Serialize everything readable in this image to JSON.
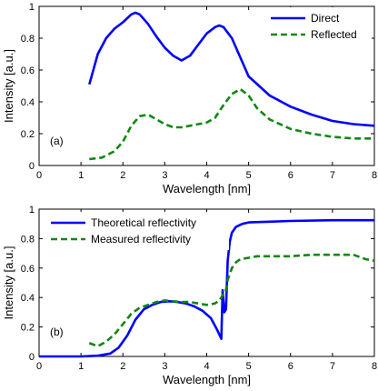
{
  "chart_data": [
    {
      "type": "line",
      "panel_label": "(a)",
      "xlabel": "Wavelength [nm]",
      "ylabel": "Intensity [a.u.]",
      "xlim": [
        0,
        8
      ],
      "ylim": [
        0,
        1
      ],
      "xticks": [
        "0",
        "1",
        "2",
        "3",
        "4",
        "5",
        "6",
        "7",
        "8"
      ],
      "yticks": [
        "0",
        "0.2",
        "0.4",
        "0.6",
        "0.8",
        "1"
      ],
      "grid": false,
      "legend_position": "top-right",
      "series": [
        {
          "name": "Direct",
          "color": "#0000ff",
          "dash": "solid",
          "x": [
            1.2,
            1.4,
            1.6,
            1.8,
            2.0,
            2.2,
            2.3,
            2.4,
            2.6,
            2.8,
            3.0,
            3.2,
            3.4,
            3.6,
            3.8,
            4.0,
            4.2,
            4.3,
            4.4,
            4.6,
            4.8,
            5.0,
            5.5,
            6.0,
            6.5,
            7.0,
            7.5,
            8.0
          ],
          "y": [
            0.51,
            0.7,
            0.8,
            0.86,
            0.9,
            0.95,
            0.96,
            0.95,
            0.89,
            0.81,
            0.74,
            0.69,
            0.66,
            0.69,
            0.76,
            0.83,
            0.87,
            0.88,
            0.87,
            0.8,
            0.68,
            0.56,
            0.44,
            0.37,
            0.32,
            0.28,
            0.26,
            0.25
          ]
        },
        {
          "name": "Reflected",
          "color": "#118811",
          "dash": "dashed",
          "x": [
            1.2,
            1.5,
            1.8,
            2.0,
            2.2,
            2.4,
            2.6,
            2.8,
            3.0,
            3.2,
            3.4,
            3.6,
            3.8,
            4.0,
            4.2,
            4.4,
            4.6,
            4.8,
            5.0,
            5.2,
            5.5,
            6.0,
            6.5,
            7.0,
            7.5,
            8.0
          ],
          "y": [
            0.04,
            0.05,
            0.09,
            0.15,
            0.25,
            0.31,
            0.32,
            0.29,
            0.26,
            0.24,
            0.24,
            0.25,
            0.26,
            0.27,
            0.3,
            0.38,
            0.45,
            0.48,
            0.44,
            0.36,
            0.29,
            0.23,
            0.2,
            0.18,
            0.17,
            0.17
          ]
        }
      ]
    },
    {
      "type": "line",
      "panel_label": "(b)",
      "xlabel": "Wavelength [nm]",
      "ylabel": "Intensity [a.u.]",
      "xlim": [
        0,
        8
      ],
      "ylim": [
        0,
        1
      ],
      "xticks": [
        "0",
        "1",
        "2",
        "3",
        "4",
        "5",
        "6",
        "7",
        "8"
      ],
      "yticks": [
        "0",
        "0.2",
        "0.4",
        "0.6",
        "0.8",
        "1"
      ],
      "grid": false,
      "legend_position": "top-left",
      "series": [
        {
          "name": "Theoretical reflectivity",
          "color": "#0000ff",
          "dash": "solid",
          "x": [
            0.0,
            1.0,
            1.4,
            1.7,
            1.9,
            2.1,
            2.3,
            2.5,
            2.7,
            2.9,
            3.1,
            3.3,
            3.5,
            3.7,
            3.9,
            4.1,
            4.25,
            4.35,
            4.38,
            4.42,
            4.46,
            4.5,
            4.55,
            4.6,
            4.7,
            4.85,
            5.0,
            5.5,
            6.0,
            7.0,
            8.0
          ],
          "y": [
            0.0,
            0.0,
            0.005,
            0.02,
            0.06,
            0.14,
            0.25,
            0.32,
            0.35,
            0.37,
            0.375,
            0.37,
            0.36,
            0.34,
            0.31,
            0.26,
            0.18,
            0.12,
            0.45,
            0.3,
            0.32,
            0.65,
            0.78,
            0.84,
            0.88,
            0.9,
            0.91,
            0.915,
            0.92,
            0.925,
            0.925
          ]
        },
        {
          "name": "Measured reflectivity",
          "color": "#118811",
          "dash": "dashed",
          "x": [
            1.2,
            1.4,
            1.6,
            1.8,
            2.0,
            2.2,
            2.4,
            2.6,
            2.8,
            3.0,
            3.2,
            3.4,
            3.6,
            3.8,
            4.0,
            4.2,
            4.3,
            4.35,
            4.4,
            4.45,
            4.5,
            4.6,
            4.7,
            4.8,
            5.0,
            5.2,
            5.5,
            6.0,
            6.5,
            7.0,
            7.5,
            7.8,
            8.0
          ],
          "y": [
            0.09,
            0.07,
            0.1,
            0.15,
            0.22,
            0.29,
            0.33,
            0.35,
            0.37,
            0.38,
            0.375,
            0.37,
            0.37,
            0.36,
            0.35,
            0.36,
            0.38,
            0.4,
            0.43,
            0.44,
            0.52,
            0.6,
            0.64,
            0.66,
            0.67,
            0.68,
            0.68,
            0.68,
            0.69,
            0.69,
            0.69,
            0.66,
            0.65
          ]
        }
      ]
    }
  ]
}
